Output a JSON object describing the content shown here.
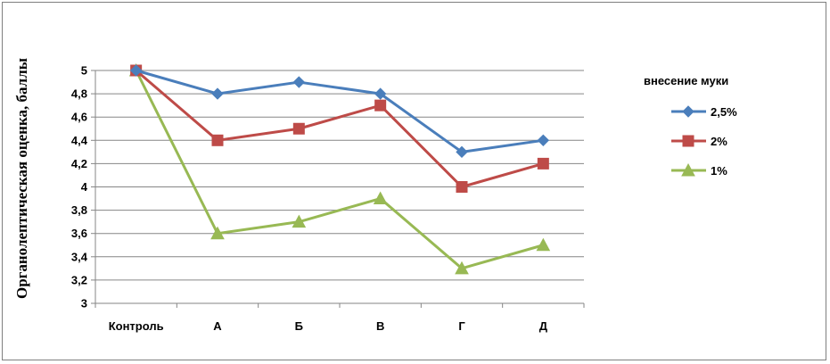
{
  "chart_data": {
    "type": "line",
    "title": "",
    "xlabel": "",
    "ylabel": "Органолептическая оценка, баллы",
    "categories": [
      "Контроль",
      "А",
      "Б",
      "В",
      "Г",
      "Д"
    ],
    "ylim": [
      3,
      5
    ],
    "ytick_step": 0.2,
    "yticks": [
      "3",
      "3,2",
      "3,4",
      "3,6",
      "3,8",
      "4",
      "4,2",
      "4,4",
      "4,6",
      "4,8",
      "5"
    ],
    "grid": "horizontal",
    "legend": {
      "title": "внесение муки",
      "placement": "right"
    },
    "series": [
      {
        "name": "2,5%",
        "values": [
          5.0,
          4.8,
          4.9,
          4.8,
          4.3,
          4.4
        ],
        "color": "#4a7ebb",
        "marker": "diamond"
      },
      {
        "name": "2%",
        "values": [
          5.0,
          4.4,
          4.5,
          4.7,
          4.0,
          4.2
        ],
        "color": "#be4b48",
        "marker": "square"
      },
      {
        "name": "1%",
        "values": [
          5.0,
          3.6,
          3.7,
          3.9,
          3.3,
          3.5
        ],
        "color": "#98b954",
        "marker": "triangle"
      }
    ]
  }
}
